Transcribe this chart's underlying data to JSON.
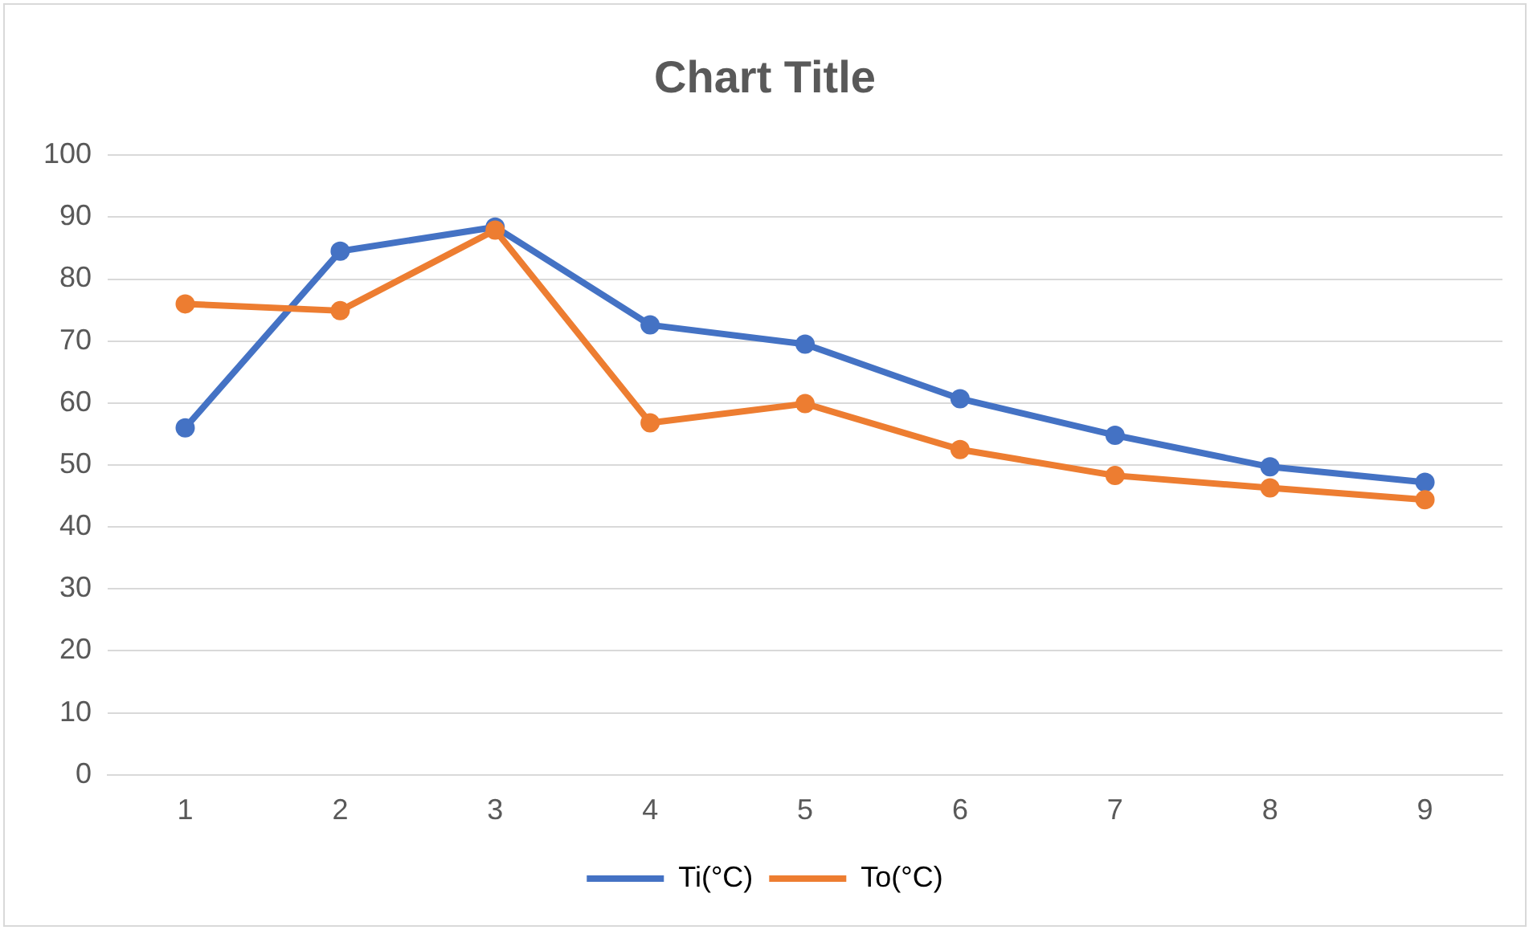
{
  "chart_data": {
    "type": "line",
    "title": "Chart Title",
    "categories": [
      "1",
      "2",
      "3",
      "4",
      "5",
      "6",
      "7",
      "8",
      "9"
    ],
    "series": [
      {
        "name": "Ti(°C)",
        "color": "#4472c4",
        "values": [
          56,
          84.5,
          88.4,
          72.6,
          69.5,
          60.7,
          54.8,
          49.7,
          47.2
        ]
      },
      {
        "name": "To(°C)",
        "color": "#ed7d31",
        "values": [
          76,
          74.9,
          87.9,
          56.8,
          59.9,
          52.5,
          48.3,
          46.3,
          44.4
        ]
      }
    ],
    "ylim": [
      0,
      100
    ],
    "yticks": [
      0,
      10,
      20,
      30,
      40,
      50,
      60,
      70,
      80,
      90,
      100
    ],
    "grid": "y",
    "legend": "bottom",
    "marker": "circle",
    "line_style": "solid"
  }
}
